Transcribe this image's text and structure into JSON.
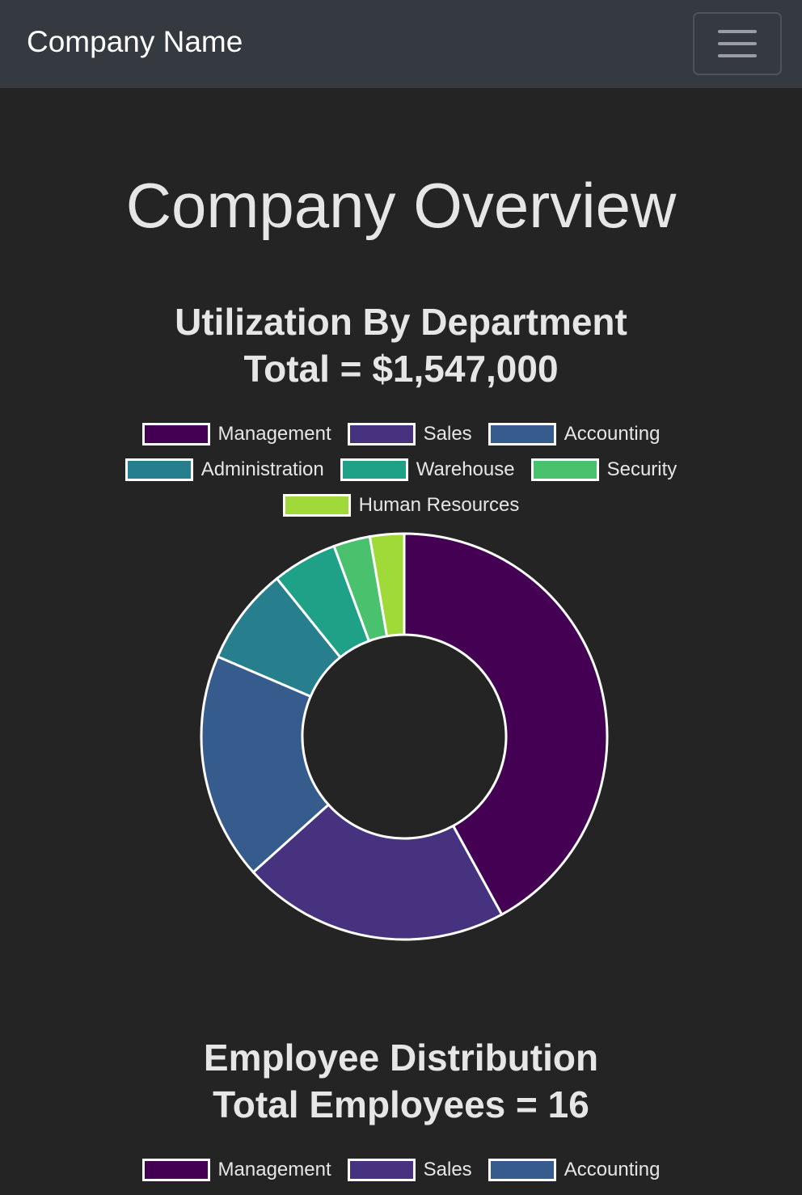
{
  "navbar": {
    "brand": "Company Name",
    "toggler_icon": "hamburger-menu-icon"
  },
  "page": {
    "title": "Company Overview"
  },
  "utilization": {
    "title_line1": "Utilization By Department",
    "title_line2": "Total = $1,547,000"
  },
  "employees": {
    "title_line1": "Employee Distribution",
    "title_line2": "Total Employees = 16",
    "legend": [
      {
        "label": "Management",
        "color": "#440154"
      },
      {
        "label": "Sales",
        "color": "#46327e"
      },
      {
        "label": "Accounting",
        "color": "#365c8d"
      }
    ]
  },
  "chart_data": {
    "type": "doughnut",
    "title": "Utilization By Department",
    "subtitle": "Total = $1,547,000",
    "legend_position": "top",
    "categories": [
      "Management",
      "Sales",
      "Accounting",
      "Administration",
      "Warehouse",
      "Security",
      "Human Resources"
    ],
    "colors": [
      "#440154",
      "#46327e",
      "#365c8d",
      "#277f8e",
      "#1fa187",
      "#4ac16d",
      "#a0da39"
    ],
    "values": [
      650000,
      330000,
      280000,
      120000,
      80000,
      45000,
      42000
    ],
    "border_color": "#ffffff"
  }
}
